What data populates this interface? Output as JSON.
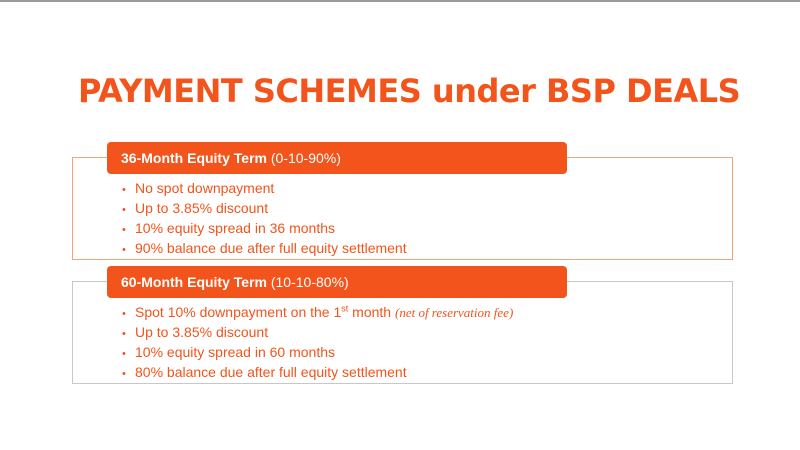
{
  "title": "PAYMENT SCHEMES under BSP DEALS",
  "bullet_glyph": "•",
  "schemes": [
    {
      "name": "36-Month Equity Term",
      "split": "(0-10-90%)",
      "items": [
        "No spot downpayment",
        "Up to 3.85% discount",
        "10% equity spread in 36 months",
        "90% balance due after full equity settlement"
      ]
    },
    {
      "name": "60-Month Equity Term",
      "split": "(10-10-80%)",
      "first_item": {
        "text": "Spot 10% downpayment on the 1",
        "superscript": "st",
        "after": " month ",
        "note": "(net of reservation fee)"
      },
      "items": [
        "Up to 3.85% discount",
        "10% equity spread in 60 months",
        "80% balance due after full equity settlement"
      ]
    }
  ],
  "colors": {
    "accent": "#f2541b",
    "box_border_1": "#f3a57a",
    "box_border_2": "#c8c8c8",
    "background": "#ffffff"
  }
}
